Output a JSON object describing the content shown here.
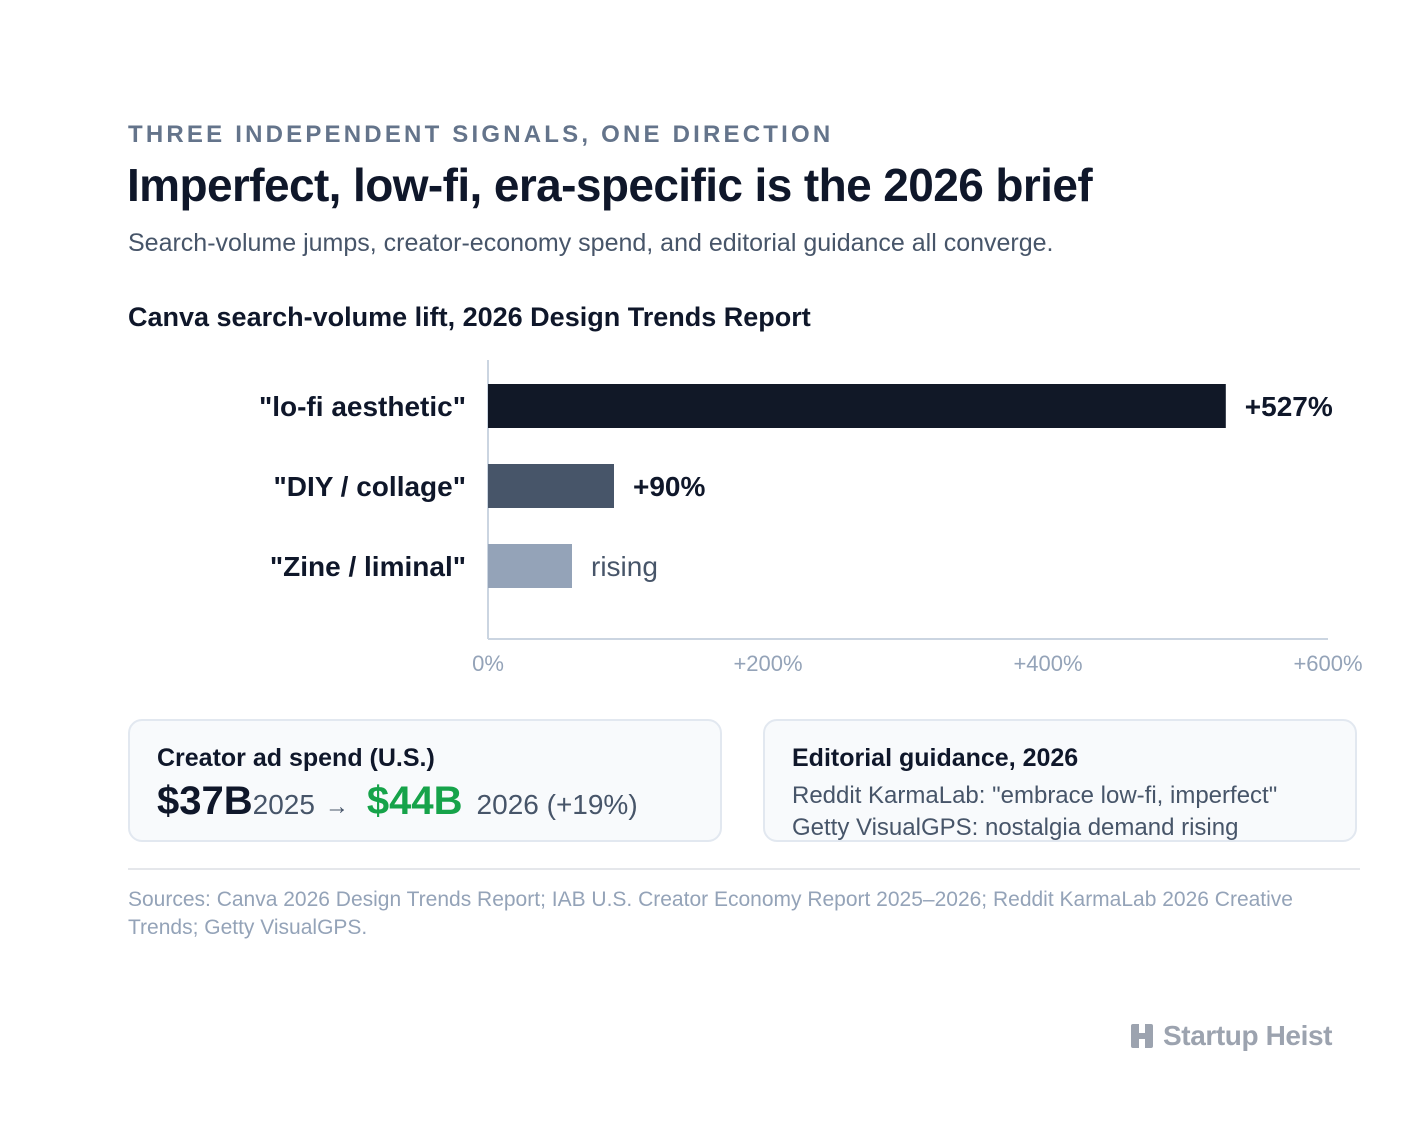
{
  "header": {
    "eyebrow": "THREE INDEPENDENT SIGNALS, ONE DIRECTION",
    "title": "Imperfect, low-fi, era-specific is the 2026 brief",
    "subtitle": "Search-volume jumps, creator-economy spend, and editorial guidance all converge."
  },
  "chart_data": {
    "type": "bar",
    "orientation": "horizontal",
    "title": "Canva search-volume lift, 2026 Design Trends Report",
    "categories": [
      "\"lo-fi aesthetic\"",
      "\"DIY / collage\"",
      "\"Zine / liminal\""
    ],
    "values": [
      527,
      90,
      60
    ],
    "value_labels": [
      "+527%",
      "+90%",
      "rising"
    ],
    "colors": [
      "#111827",
      "#475569",
      "#94a3b8"
    ],
    "xlim": [
      0,
      600
    ],
    "x_ticks": [
      0,
      200,
      400,
      600
    ],
    "x_tick_labels": [
      "0%",
      "+200%",
      "+400%",
      "+600%"
    ],
    "grid": false
  },
  "cards": {
    "spend": {
      "label": "Creator ad spend (U.S.)",
      "from_value": "$37B",
      "from_year": "2025",
      "arrow": "→",
      "to_value": "$44B",
      "to_year": "2026 (+19%)",
      "to_color": "#16a34a"
    },
    "editorial": {
      "label": "Editorial guidance, 2026",
      "lines": [
        "Reddit KarmaLab: \"embrace low-fi, imperfect\"",
        "Getty VisualGPS: nostalgia demand rising"
      ]
    }
  },
  "footer": {
    "sources": "Sources: Canva 2026 Design Trends Report; IAB U.S. Creator Economy Report 2025–2026; Reddit KarmaLab 2026 Creative Trends; Getty VisualGPS.",
    "brand": "Startup Heist",
    "brand_icon": "startup-heist-logo-icon"
  }
}
